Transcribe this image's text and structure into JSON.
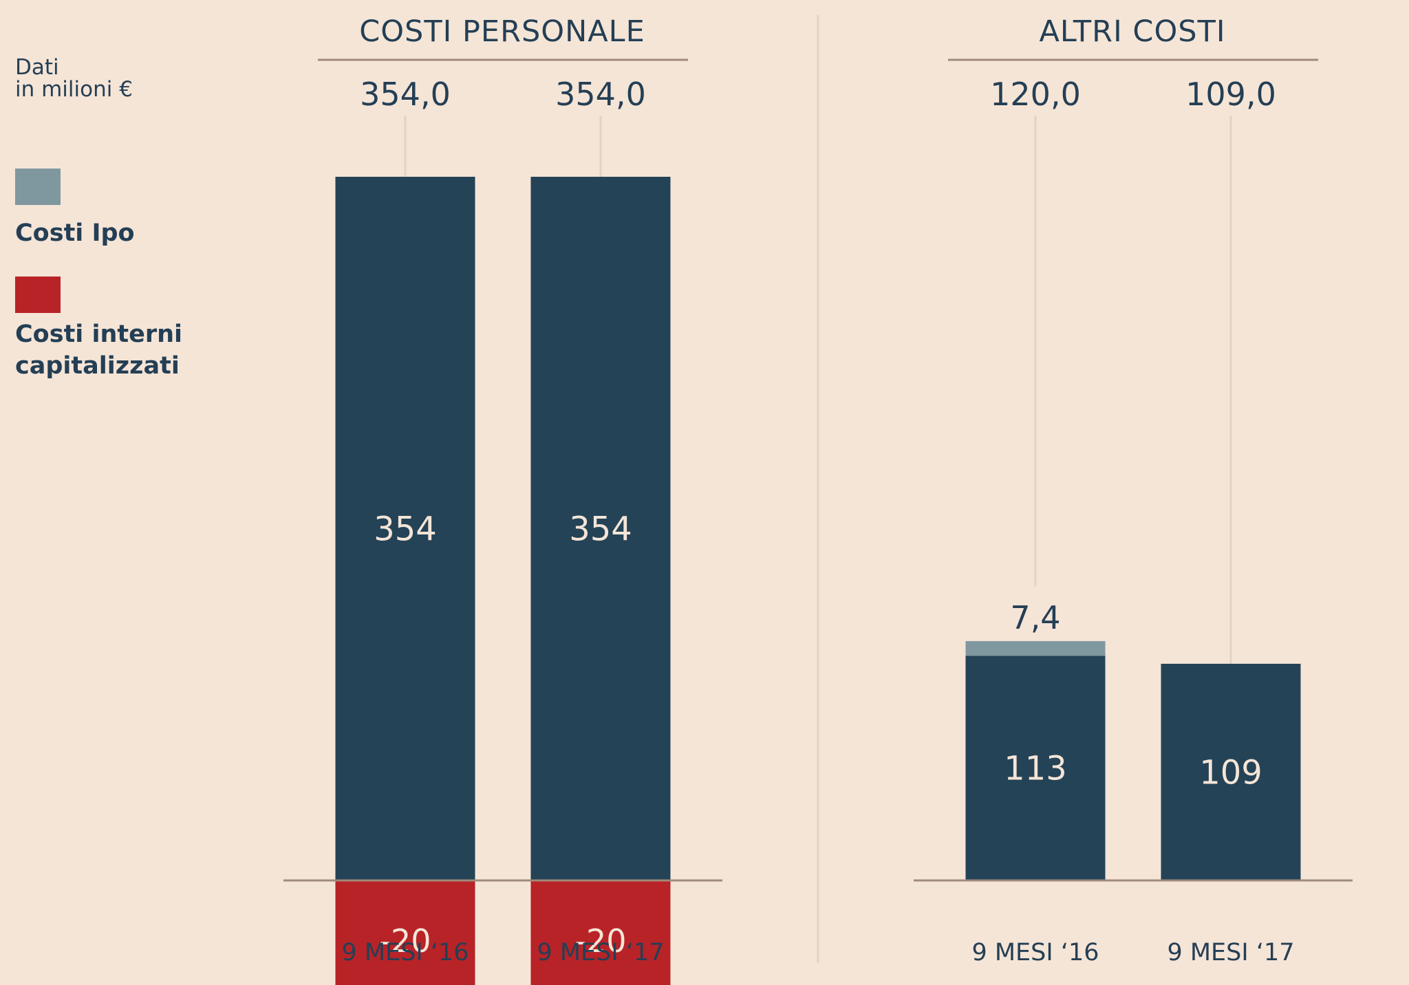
{
  "unit_note": [
    "Dati",
    "in milioni €"
  ],
  "legend": [
    {
      "label": [
        "Costi Ipo"
      ],
      "color": "#7f989f",
      "icon": "square-swatch"
    },
    {
      "label": [
        "Costi interni",
        "capitalizzati"
      ],
      "color": "#b82327",
      "icon": "square-swatch"
    }
  ],
  "colors": {
    "base": "#244357",
    "ipo": "#7f989f",
    "capitalized": "#b82327",
    "background": "#f5e5d7",
    "text": "#243f55",
    "guide": "#e3d3c4",
    "axis": "#a08a7a"
  },
  "chart_data": [
    {
      "type": "bar",
      "title": "COSTI PERSONALE",
      "categories": [
        "9 MESI ‘16",
        "9 MESI ‘17"
      ],
      "totals": [
        "354,0",
        "354,0"
      ],
      "ylim": [
        -28,
        480
      ],
      "series": [
        {
          "name": "Costi personale",
          "values": [
            354,
            354
          ],
          "labels": [
            "354",
            "354"
          ]
        },
        {
          "name": "Costi interni capitalizzati",
          "values": [
            -20,
            -20
          ],
          "labels": [
            "-20",
            "-20"
          ]
        }
      ]
    },
    {
      "type": "bar",
      "title": "ALTRI COSTI",
      "categories": [
        "9 MESI ‘16",
        "9 MESI ‘17"
      ],
      "totals": [
        "120,0",
        "109,0"
      ],
      "ylim": [
        -28,
        480
      ],
      "series": [
        {
          "name": "Altri costi",
          "values": [
            113,
            109
          ],
          "labels": [
            "113",
            "109"
          ]
        },
        {
          "name": "Costi Ipo",
          "values": [
            7.4,
            0
          ],
          "labels": [
            "7,4",
            ""
          ]
        }
      ]
    }
  ]
}
